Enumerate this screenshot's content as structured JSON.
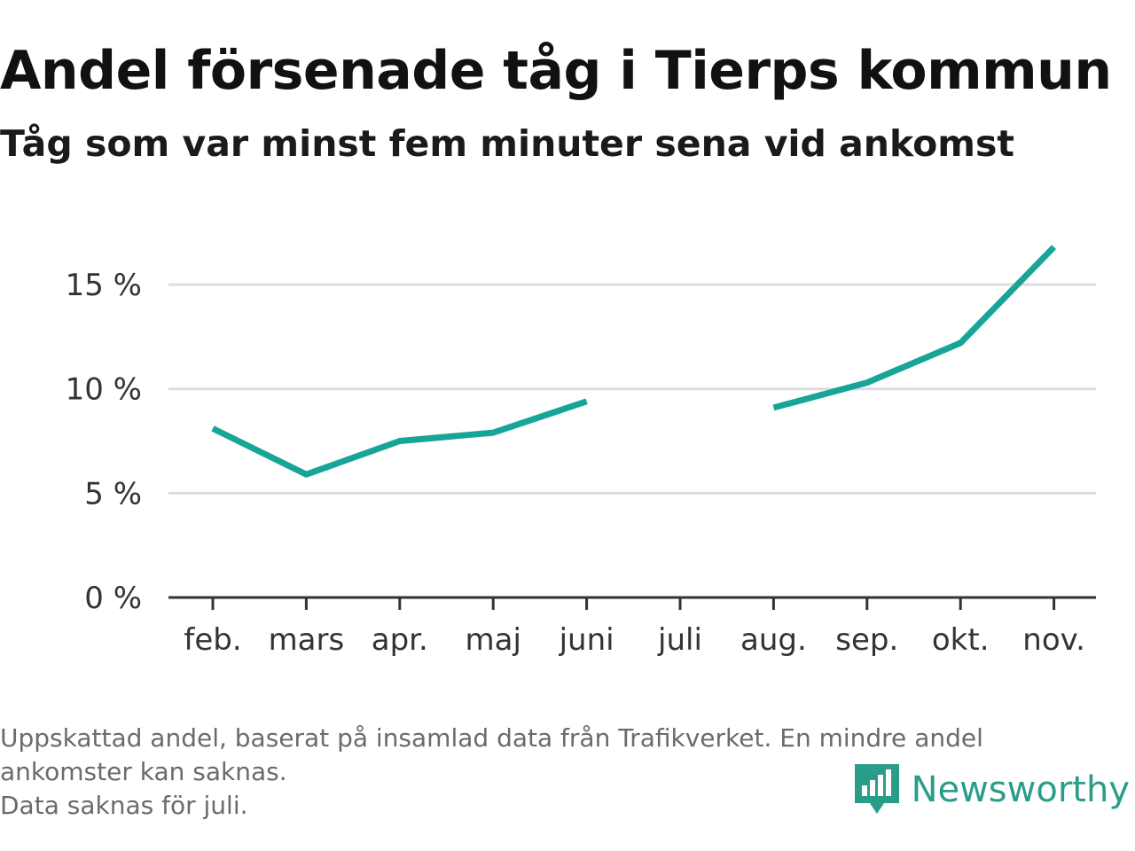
{
  "title": "Andel försenade tåg i Tierps kommun",
  "subtitle": "Tåg som var minst fem minuter sena vid ankomst",
  "chart_data": {
    "type": "line",
    "categories": [
      "feb.",
      "mars",
      "apr.",
      "maj",
      "juni",
      "juli",
      "aug.",
      "sep.",
      "okt.",
      "nov."
    ],
    "series": [
      {
        "values": [
          8.1,
          5.9,
          7.5,
          7.9,
          9.4,
          null,
          9.1,
          10.3,
          12.2,
          16.8
        ]
      }
    ],
    "y_ticks": [
      0,
      5,
      10,
      15
    ],
    "y_tick_labels": [
      "0 %",
      "5 %",
      "10 %",
      "15 %"
    ],
    "ylim": [
      0,
      18
    ],
    "unit": "%",
    "grid": true,
    "line_color": "#17a597"
  },
  "footnote": {
    "line1": "Uppskattad andel, baserat på insamlad data från Trafikverket. En mindre andel",
    "line2": "ankomster kan saknas.",
    "line3": "Data saknas för juli."
  },
  "logo": {
    "name": "Newsworthy",
    "icon": "newsworthy-logo-icon",
    "color": "#2a9d8a"
  }
}
